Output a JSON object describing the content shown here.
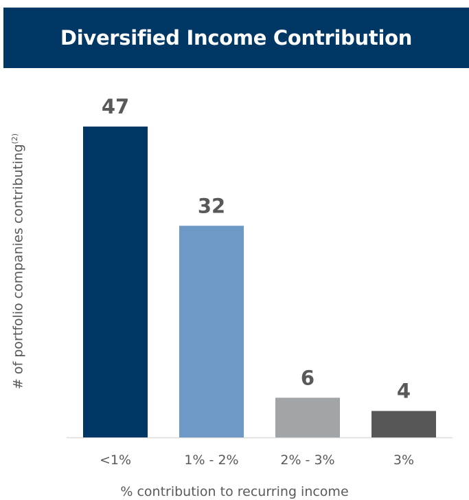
{
  "header": {
    "title": "Diversified Income Contribution"
  },
  "chart_data": {
    "type": "bar",
    "title": "Diversified Income Contribution",
    "xlabel": "% contribution to recurring income",
    "ylabel": "# of portfolio companies contributing",
    "ylabel_superscript": "(2)",
    "categories": [
      "<1%",
      "1% - 2%",
      "2% - 3%",
      "3%"
    ],
    "values": [
      47,
      32,
      6,
      4
    ],
    "bar_colors": [
      "#003764",
      "#6e98c5",
      "#a2a5a8",
      "#575757"
    ],
    "ylim": [
      0,
      50
    ],
    "grid": false,
    "legend": "none"
  }
}
